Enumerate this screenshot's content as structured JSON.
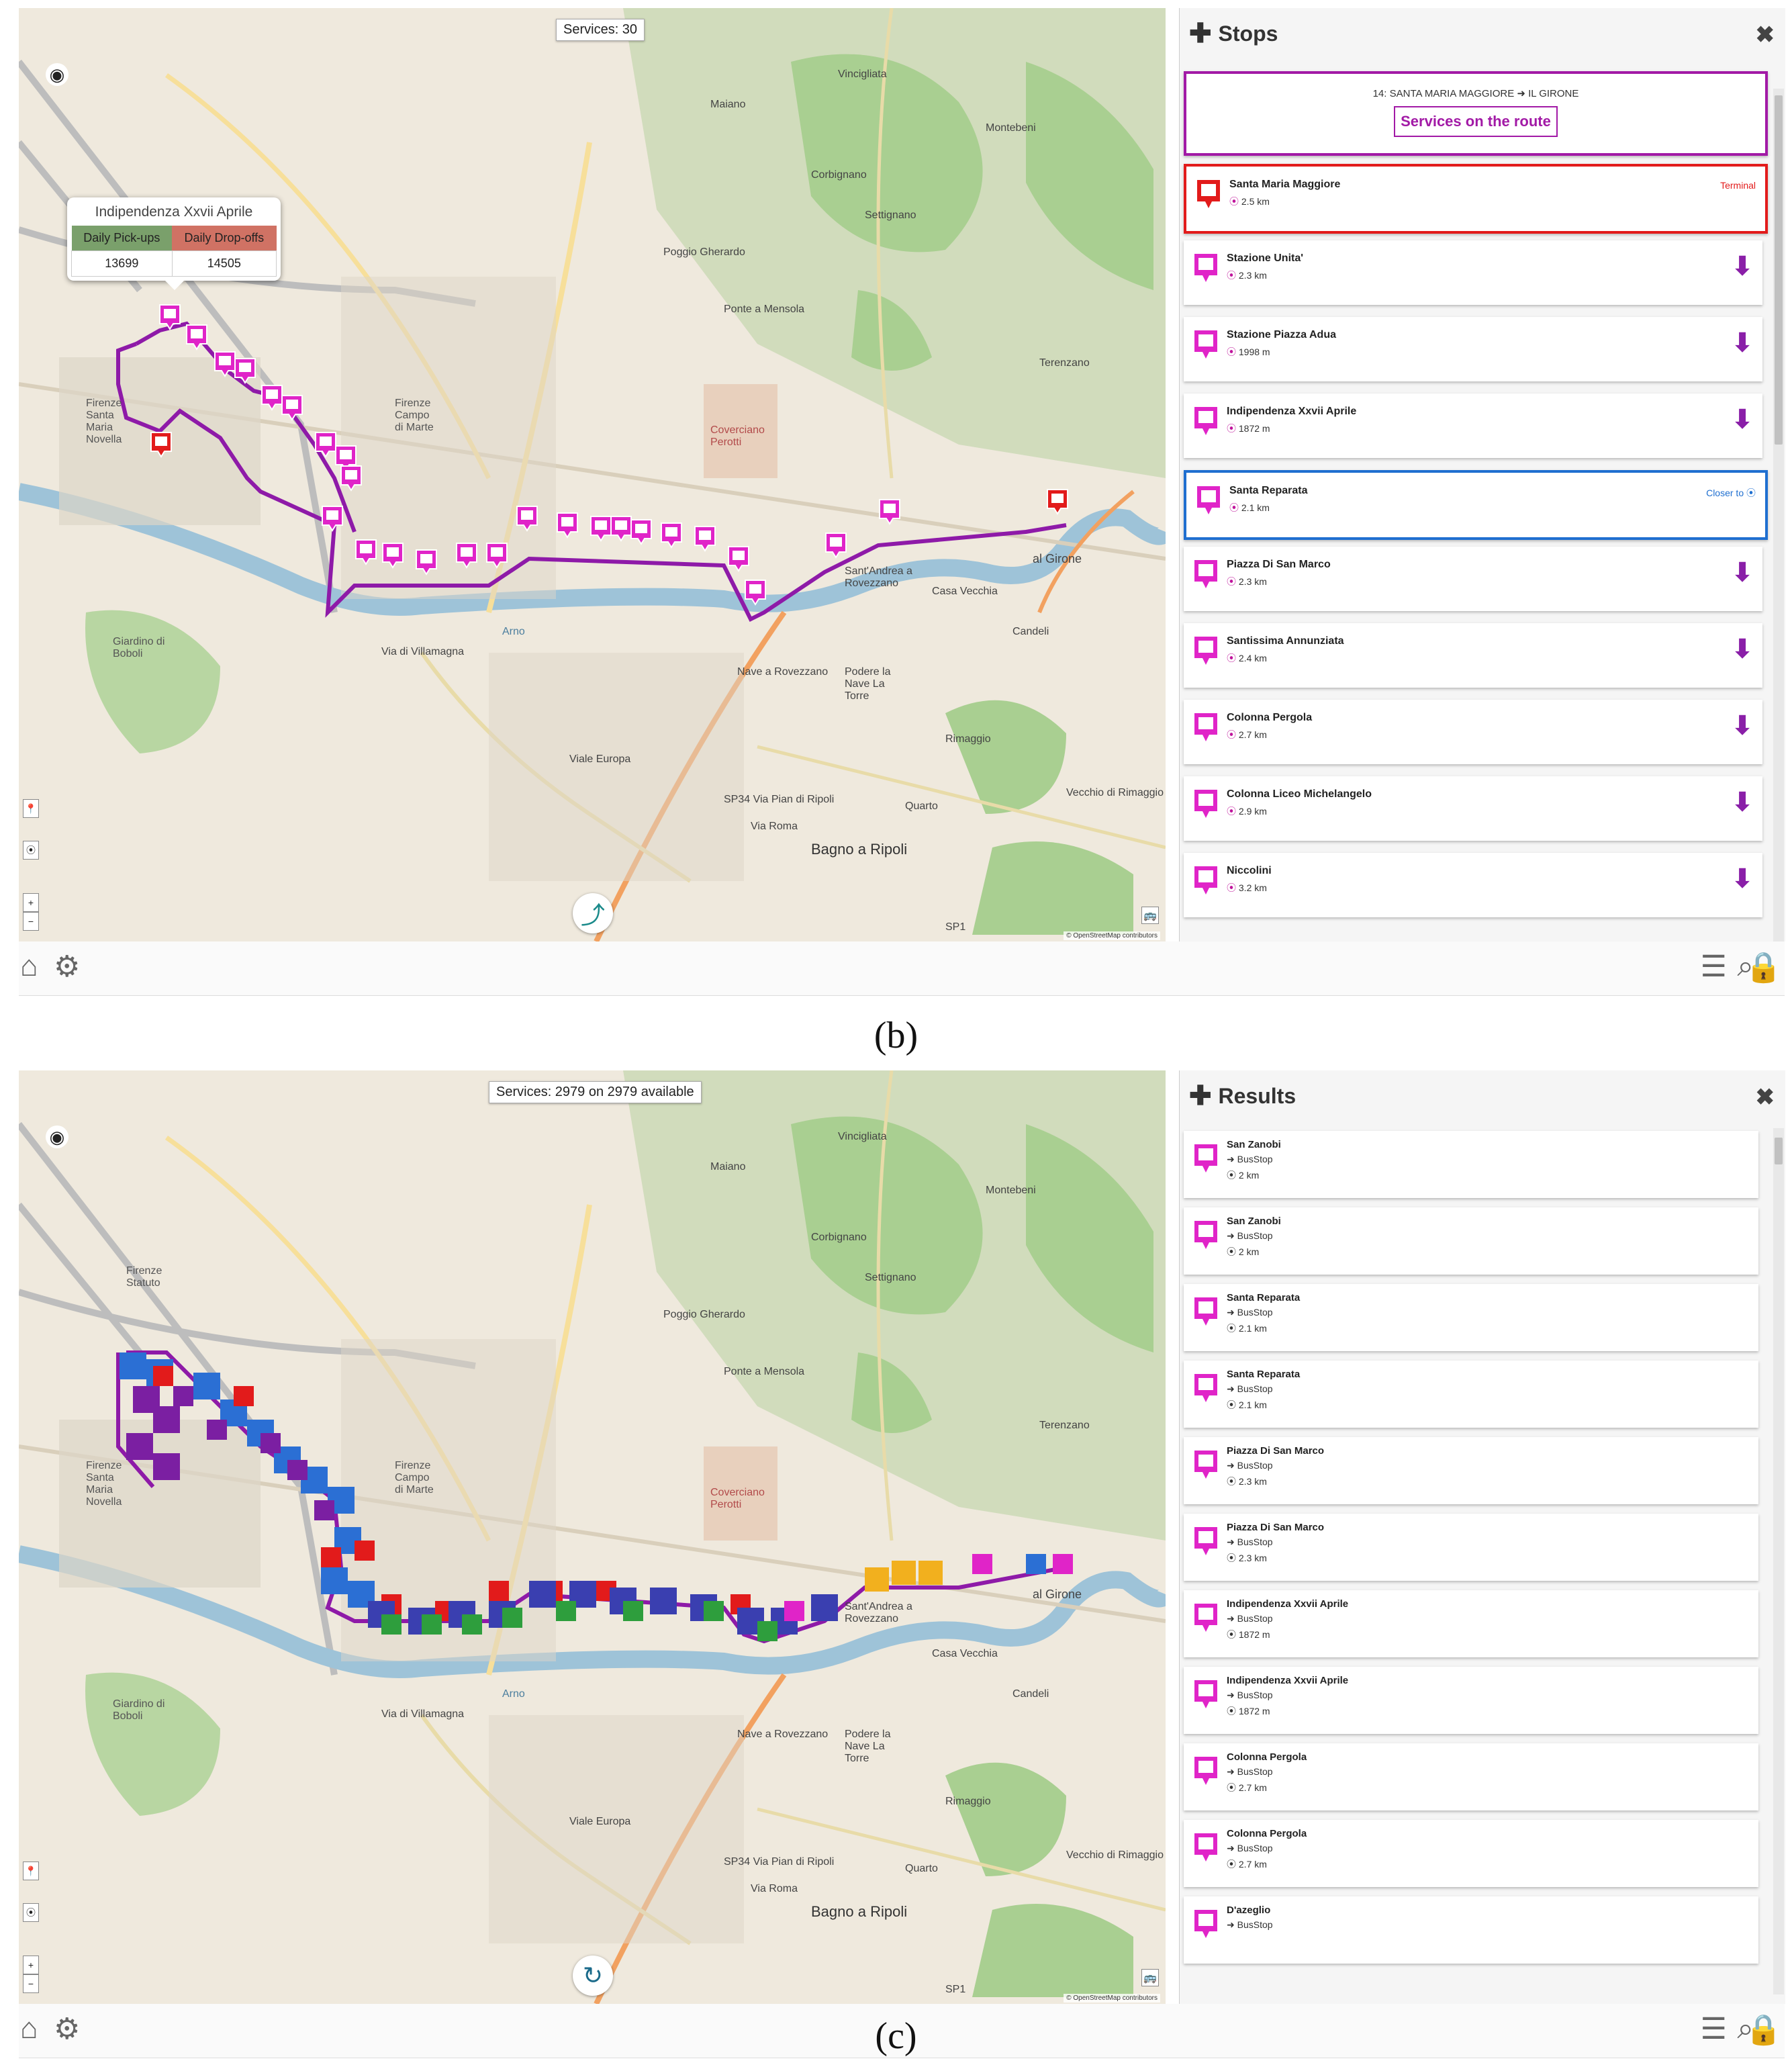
{
  "panel_b": {
    "services_counter": "Services: 30",
    "popup": {
      "title": "Indipendenza Xxvii Aprile",
      "col1": "Daily Pick-ups",
      "col2": "Daily Drop-offs",
      "val1": "13699",
      "val2": "14505"
    },
    "sidebar": {
      "title": "Stops",
      "route_name": "14: SANTA MARIA MAGGIORE ➜ IL GIRONE",
      "route_button": "Services on the route",
      "stops": [
        {
          "name": "Santa Maria Maggiore",
          "distance": "2.5 km",
          "tag": "Terminal",
          "style": "terminal"
        },
        {
          "name": "Stazione Unita'",
          "distance": "2.3 km",
          "tag": "",
          "style": "normal"
        },
        {
          "name": "Stazione Piazza Adua",
          "distance": "1998 m",
          "tag": "",
          "style": "normal"
        },
        {
          "name": "Indipendenza Xxvii Aprile",
          "distance": "1872 m",
          "tag": "",
          "style": "normal"
        },
        {
          "name": "Santa Reparata",
          "distance": "2.1 km",
          "tag": "Closer to ⦿",
          "style": "current"
        },
        {
          "name": "Piazza Di San Marco",
          "distance": "2.3 km",
          "tag": "",
          "style": "normal"
        },
        {
          "name": "Santissima Annunziata",
          "distance": "2.4 km",
          "tag": "",
          "style": "normal"
        },
        {
          "name": "Colonna Pergola",
          "distance": "2.7 km",
          "tag": "",
          "style": "normal"
        },
        {
          "name": "Colonna Liceo Michelangelo",
          "distance": "2.9 km",
          "tag": "",
          "style": "normal"
        },
        {
          "name": "Niccolini",
          "distance": "3.2 km",
          "tag": "",
          "style": "normal"
        }
      ]
    },
    "caption": "(b)"
  },
  "panel_c": {
    "services_counter": "Services: 2979 on 2979 available",
    "sidebar": {
      "title": "Results",
      "results": [
        {
          "name": "San Zanobi",
          "type": "➜ BusStop",
          "distance": "2 km"
        },
        {
          "name": "San Zanobi",
          "type": "➜ BusStop",
          "distance": "2 km"
        },
        {
          "name": "Santa Reparata",
          "type": "➜ BusStop",
          "distance": "2.1 km"
        },
        {
          "name": "Santa Reparata",
          "type": "➜ BusStop",
          "distance": "2.1 km"
        },
        {
          "name": "Piazza Di San Marco",
          "type": "➜ BusStop",
          "distance": "2.3 km"
        },
        {
          "name": "Piazza Di San Marco",
          "type": "➜ BusStop",
          "distance": "2.3 km"
        },
        {
          "name": "Indipendenza Xxvii Aprile",
          "type": "➜ BusStop",
          "distance": "1872 m"
        },
        {
          "name": "Indipendenza Xxvii Aprile",
          "type": "➜ BusStop",
          "distance": "1872 m"
        },
        {
          "name": "Colonna Pergola",
          "type": "➜ BusStop",
          "distance": "2.7 km"
        },
        {
          "name": "Colonna Pergola",
          "type": "➜ BusStop",
          "distance": "2.7 km"
        },
        {
          "name": "D'azeglio",
          "type": "➜ BusStop",
          "distance": ""
        }
      ]
    },
    "caption": "(c)"
  },
  "map_labels": {
    "settignano": "Settignano",
    "bagno": "Bagno a Ripoli",
    "girone": "al Girone",
    "santa_maria_novella": "Firenze Santa Maria Novella",
    "campo_marte": "Firenze Campo di Marte",
    "boboli": "Giardino di Boboli",
    "rovezzano": "Sant'Andrea a Rovezzano",
    "maiano": "Maiano",
    "vincigliata": "Vincigliata",
    "montebeni": "Montebeni",
    "corbignano": "Corbignano",
    "terenzano": "Terenzano",
    "poggio_gherardo": "Poggio Gherardo",
    "ponte_mensola": "Ponte a Mensola",
    "coverciano": "Coverciano Perotti",
    "casa_vecchia": "Casa Vecchia",
    "candeli": "Candeli",
    "nave": "Nave a Rovezzano",
    "podere": "Podere la Nave La Torre",
    "rimaggio": "Rimaggio",
    "vecchio_rimaggio": "Vecchio di Rimaggio",
    "quarto": "Quarto",
    "sp34": "SP34  Via Pian di Ripoli",
    "via_roma": "Via Roma",
    "viale_europa": "Viale Europa",
    "arno": "Arno",
    "via_villamagna": "Via di Villamagna",
    "sp1": "SP1",
    "statuto": "Firenze Statuto",
    "osm": "© OpenStreetMap contributors"
  },
  "colors": {
    "route": "#8e1aa8",
    "stop_marker": "#e024c8",
    "terminal": "#e21b1b",
    "current_stop_border": "#1f6fd0",
    "pickups_bg": "#7aa06b",
    "dropoffs_bg": "#d07264",
    "river": "#9ec3d8",
    "park": "#a9cf91"
  },
  "icons": {
    "home": "home-icon",
    "settings": "gears-icon",
    "list": "list-icon",
    "search": "search-icon",
    "lock": "lock-icon"
  }
}
